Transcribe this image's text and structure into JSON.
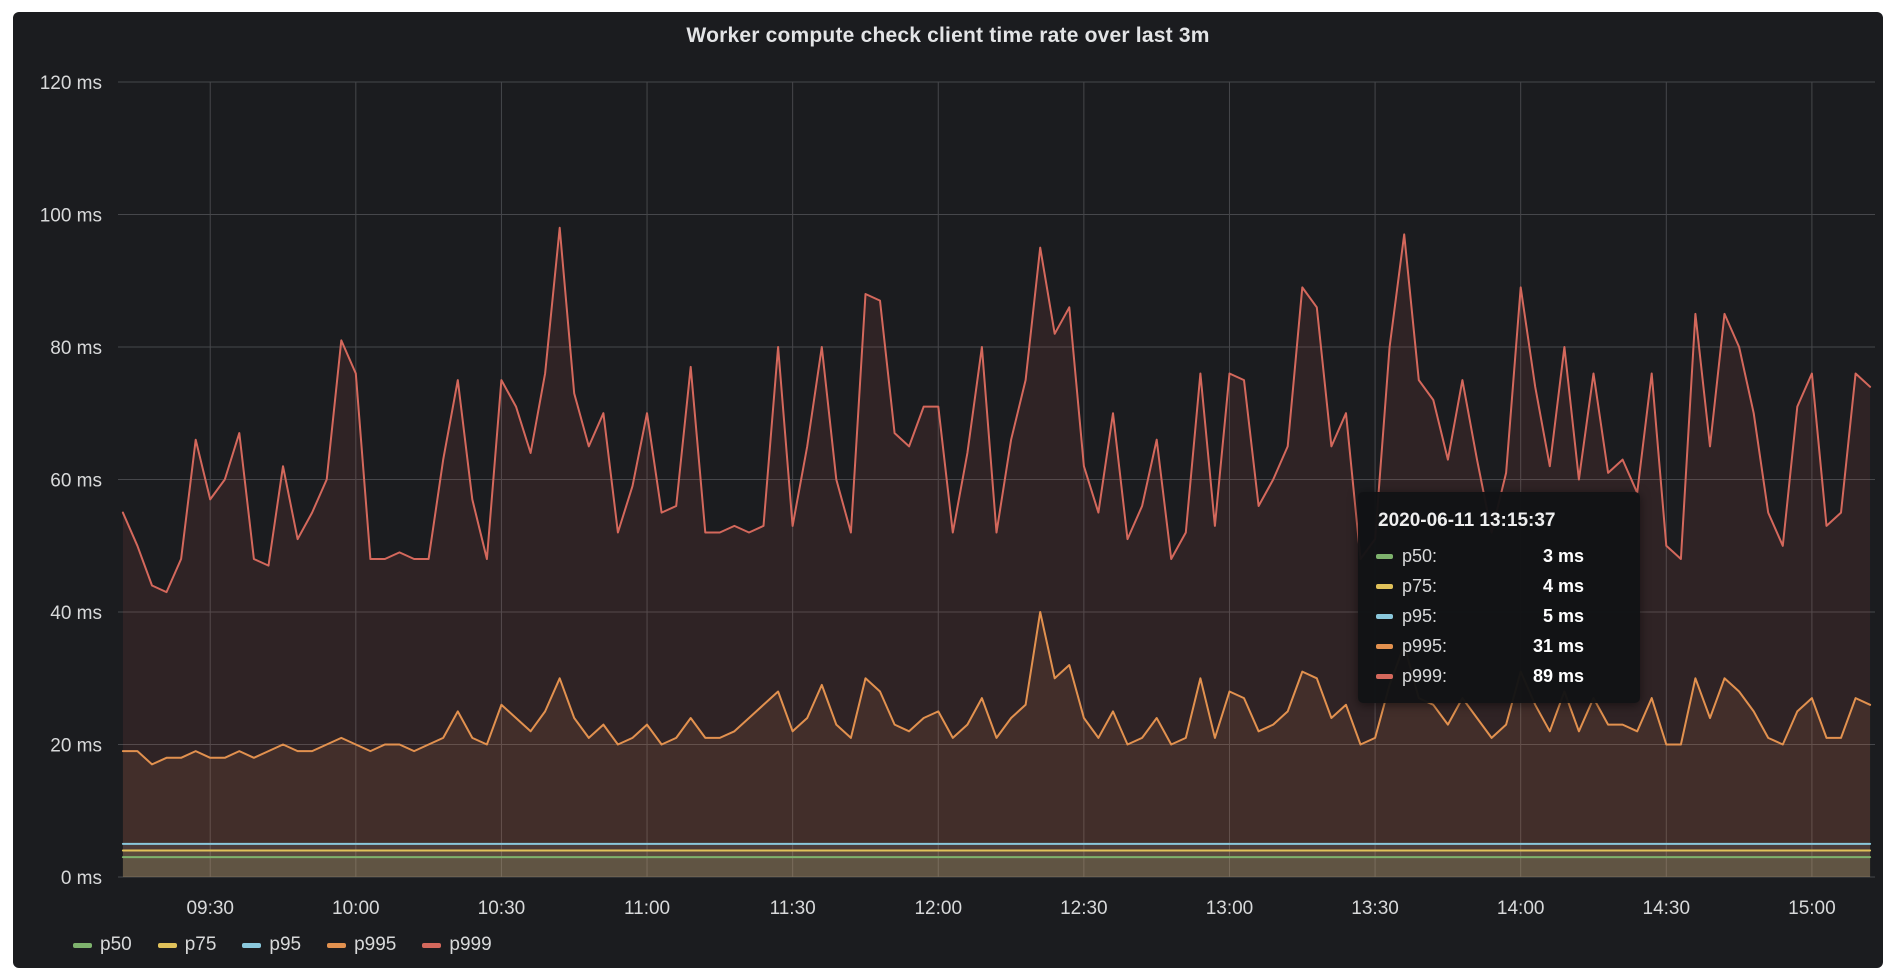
{
  "panel": {
    "title": "Worker compute check client time rate over last 3m",
    "background": "#1b1c1f",
    "grid_color": "#46474b",
    "text_color": "#d8d9da"
  },
  "chart_data": {
    "type": "line",
    "title": "Worker compute check client time rate over last 3m",
    "unit": "ms",
    "grid": true,
    "legend_position": "bottom-left",
    "x_axis": {
      "start": "09:11",
      "end": "15:13",
      "tick_labels": [
        "09:30",
        "10:00",
        "10:30",
        "11:00",
        "11:30",
        "12:00",
        "12:30",
        "13:00",
        "13:30",
        "14:00",
        "14:30",
        "15:00"
      ]
    },
    "y_axis": {
      "min": 0,
      "max": 120,
      "tick_step": 20,
      "tick_labels": [
        "0 ms",
        "20 ms",
        "40 ms",
        "60 ms",
        "80 ms",
        "100 ms",
        "120 ms"
      ]
    },
    "points_first": "09:12",
    "points_step_minutes": 3,
    "fill_opacity": 0.11,
    "line_width": 2,
    "series": [
      {
        "name": "p50",
        "color": "#7EB26D",
        "constant": 3
      },
      {
        "name": "p75",
        "color": "#E0C15A",
        "constant": 4
      },
      {
        "name": "p95",
        "color": "#8AC8DC",
        "constant": 5
      },
      {
        "name": "p995",
        "color": "#E2914F",
        "values": [
          19,
          19,
          17,
          18,
          18,
          19,
          18,
          18,
          19,
          18,
          19,
          20,
          19,
          19,
          20,
          21,
          20,
          19,
          20,
          20,
          19,
          20,
          21,
          25,
          21,
          20,
          26,
          24,
          22,
          25,
          30,
          24,
          21,
          23,
          20,
          21,
          23,
          20,
          21,
          24,
          21,
          21,
          22,
          24,
          26,
          28,
          22,
          24,
          29,
          23,
          21,
          30,
          28,
          23,
          22,
          24,
          25,
          21,
          23,
          27,
          21,
          24,
          26,
          40,
          30,
          32,
          24,
          21,
          25,
          20,
          21,
          24,
          20,
          21,
          30,
          21,
          28,
          27,
          22,
          23,
          25,
          31,
          30,
          24,
          26,
          20,
          21,
          29,
          35,
          27,
          26,
          23,
          27,
          24,
          21,
          23,
          31,
          26,
          22,
          28,
          22,
          27,
          23,
          23,
          22,
          27,
          20,
          20,
          30,
          24,
          30,
          28,
          25,
          21,
          20,
          25,
          27,
          21,
          21,
          27,
          26
        ]
      },
      {
        "name": "p999",
        "color": "#D4685C",
        "values": [
          55,
          50,
          44,
          43,
          48,
          66,
          57,
          60,
          67,
          48,
          47,
          62,
          51,
          55,
          60,
          81,
          76,
          48,
          48,
          49,
          48,
          48,
          63,
          75,
          57,
          48,
          75,
          71,
          64,
          76,
          98,
          73,
          65,
          70,
          52,
          59,
          70,
          55,
          56,
          77,
          52,
          52,
          53,
          52,
          53,
          80,
          53,
          65,
          80,
          60,
          52,
          88,
          87,
          67,
          65,
          71,
          71,
          52,
          64,
          80,
          52,
          66,
          75,
          95,
          82,
          86,
          62,
          55,
          70,
          51,
          56,
          66,
          48,
          52,
          76,
          53,
          76,
          75,
          56,
          60,
          65,
          89,
          86,
          65,
          70,
          48,
          51,
          80,
          97,
          75,
          72,
          63,
          75,
          63,
          52,
          61,
          89,
          74,
          62,
          80,
          60,
          76,
          61,
          63,
          58,
          76,
          50,
          48,
          85,
          65,
          85,
          80,
          70,
          55,
          50,
          71,
          76,
          53,
          55,
          76,
          74
        ]
      }
    ]
  },
  "legend": {
    "items": [
      {
        "label": "p50",
        "color": "#7EB26D"
      },
      {
        "label": "p75",
        "color": "#E0C15A"
      },
      {
        "label": "p95",
        "color": "#8AC8DC"
      },
      {
        "label": "p995",
        "color": "#E2914F"
      },
      {
        "label": "p999",
        "color": "#D4685C"
      }
    ]
  },
  "tooltip": {
    "timestamp": "2020-06-11 13:15:37",
    "rows": [
      {
        "label": "p50:",
        "value": "3 ms",
        "color": "#7EB26D"
      },
      {
        "label": "p75:",
        "value": "4 ms",
        "color": "#E0C15A"
      },
      {
        "label": "p95:",
        "value": "5 ms",
        "color": "#8AC8DC"
      },
      {
        "label": "p995:",
        "value": "31 ms",
        "color": "#E2914F"
      },
      {
        "label": "p999:",
        "value": "89 ms",
        "color": "#D4685C"
      }
    ]
  }
}
